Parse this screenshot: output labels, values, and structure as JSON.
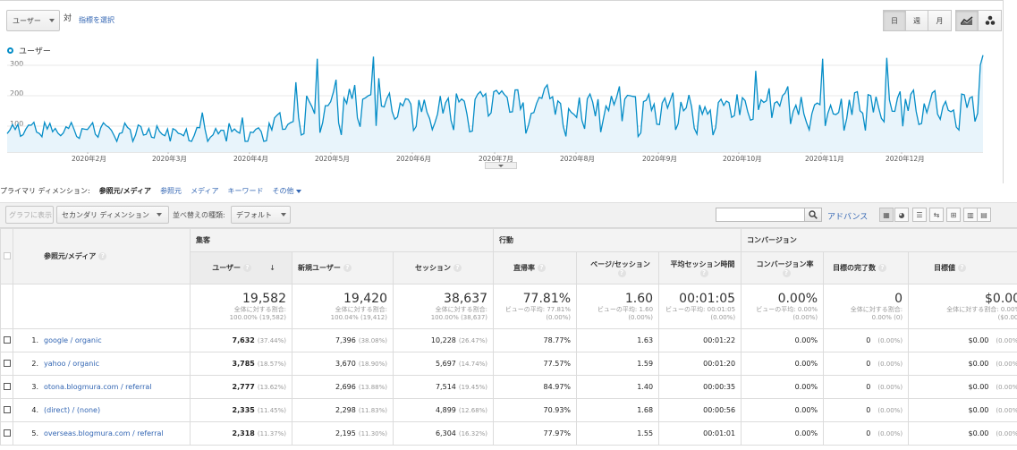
{
  "top": {
    "metric_select": "ユーザー",
    "versus": "対",
    "select_metric_link": "指標を選択",
    "period_buttons": [
      "日",
      "週",
      "月"
    ],
    "active_period": "日"
  },
  "legend": {
    "label": "ユーザー",
    "color": "#058dc7"
  },
  "chart_data": {
    "type": "area",
    "series": [
      {
        "name": "ユーザー",
        "color": "#058dc7"
      }
    ],
    "y_ticks": [
      "300",
      "200",
      "100"
    ],
    "ylim": [
      0,
      320
    ],
    "x_ticks": [
      "2020年2月",
      "2020年3月",
      "2020年4月",
      "2020年5月",
      "2020年6月",
      "2020年7月",
      "2020年8月",
      "2020年9月",
      "2020年10月",
      "2020年11月",
      "2020年12月"
    ],
    "monthly_level": [
      [
        0,
        80
      ],
      [
        1,
        80
      ],
      [
        2,
        70
      ],
      [
        3,
        60
      ],
      [
        4,
        190
      ],
      [
        5,
        140
      ],
      [
        6,
        170
      ],
      [
        7,
        150
      ],
      [
        8,
        160
      ],
      [
        9,
        150
      ],
      [
        10,
        160
      ],
      [
        11,
        160
      ],
      [
        12,
        175
      ]
    ]
  },
  "dimension_bar": {
    "label": "プライマリ ディメンション:",
    "active": "参照元/メディア",
    "options": [
      "参照元",
      "メディア",
      "キーワード",
      "その他"
    ]
  },
  "toolbar": {
    "chart_button": "グラフに表示",
    "secondary_dimension": "セカンダリ ディメンション",
    "sort_label": "並べ替えの種類:",
    "sort_value": "デフォルト",
    "search_placeholder": "",
    "advanced": "アドバンス"
  },
  "table": {
    "dimension_header": "参照元/メディア",
    "groups": [
      "集客",
      "行動",
      "コンバージョン"
    ],
    "columns": [
      "ユーザー",
      "新規ユーザー",
      "セッション",
      "直帰率",
      "ページ/セッション",
      "平均セッション時間",
      "コンバージョン率",
      "目標の完了数",
      "目標値"
    ],
    "totals": [
      {
        "value": "19,582",
        "sub1": "全体に対する割合:",
        "sub2": "100.00% (19,582)"
      },
      {
        "value": "19,420",
        "sub1": "全体に対する割合:",
        "sub2": "100.04% (19,412)"
      },
      {
        "value": "38,637",
        "sub1": "全体に対する割合:",
        "sub2": "100.00% (38,637)"
      },
      {
        "value": "77.81%",
        "sub1": "ビューの平均: 77.81%",
        "sub2": "(0.00%)"
      },
      {
        "value": "1.60",
        "sub1": "ビューの平均: 1.60",
        "sub2": "(0.00%)"
      },
      {
        "value": "00:01:05",
        "sub1": "ビューの平均: 00:01:05",
        "sub2": "(0.00%)"
      },
      {
        "value": "0.00%",
        "sub1": "ビューの平均: 0.00%",
        "sub2": "(0.00%)"
      },
      {
        "value": "0",
        "sub1": "全体に対する割合:",
        "sub2": "0.00% (0)"
      },
      {
        "value": "$0.00",
        "sub1": "全体に対する割合: 0.00%",
        "sub2": "($0.00)"
      }
    ],
    "rows": [
      {
        "num": "1.",
        "source": "google / organic",
        "users": "7,632",
        "users_pct": "(37.44%)",
        "new_users": "7,396",
        "new_pct": "(38.08%)",
        "sessions": "10,228",
        "sessions_pct": "(26.47%)",
        "bounce": "78.77%",
        "pages": "1.63",
        "duration": "00:01:22",
        "conv": "0.00%",
        "goals": "0",
        "goals_pct": "(0.00%)",
        "value": "$0.00",
        "value_pct": "(0.00%)"
      },
      {
        "num": "2.",
        "source": "yahoo / organic",
        "users": "3,785",
        "users_pct": "(18.57%)",
        "new_users": "3,670",
        "new_pct": "(18.90%)",
        "sessions": "5,697",
        "sessions_pct": "(14.74%)",
        "bounce": "77.57%",
        "pages": "1.59",
        "duration": "00:01:20",
        "conv": "0.00%",
        "goals": "0",
        "goals_pct": "(0.00%)",
        "value": "$0.00",
        "value_pct": "(0.00%)"
      },
      {
        "num": "3.",
        "source": "otona.blogmura.com / referral",
        "users": "2,777",
        "users_pct": "(13.62%)",
        "new_users": "2,696",
        "new_pct": "(13.88%)",
        "sessions": "7,514",
        "sessions_pct": "(19.45%)",
        "bounce": "84.97%",
        "pages": "1.40",
        "duration": "00:00:35",
        "conv": "0.00%",
        "goals": "0",
        "goals_pct": "(0.00%)",
        "value": "$0.00",
        "value_pct": "(0.00%)"
      },
      {
        "num": "4.",
        "source": "(direct) / (none)",
        "users": "2,335",
        "users_pct": "(11.45%)",
        "new_users": "2,298",
        "new_pct": "(11.83%)",
        "sessions": "4,899",
        "sessions_pct": "(12.68%)",
        "bounce": "70.93%",
        "pages": "1.68",
        "duration": "00:00:56",
        "conv": "0.00%",
        "goals": "0",
        "goals_pct": "(0.00%)",
        "value": "$0.00",
        "value_pct": "(0.00%)"
      },
      {
        "num": "5.",
        "source": "overseas.blogmura.com / referral",
        "users": "2,318",
        "users_pct": "(11.37%)",
        "new_users": "2,195",
        "new_pct": "(11.30%)",
        "sessions": "6,304",
        "sessions_pct": "(16.32%)",
        "bounce": "77.97%",
        "pages": "1.55",
        "duration": "00:01:01",
        "conv": "0.00%",
        "goals": "0",
        "goals_pct": "(0.00%)",
        "value": "$0.00",
        "value_pct": "(0.00%)"
      }
    ]
  }
}
